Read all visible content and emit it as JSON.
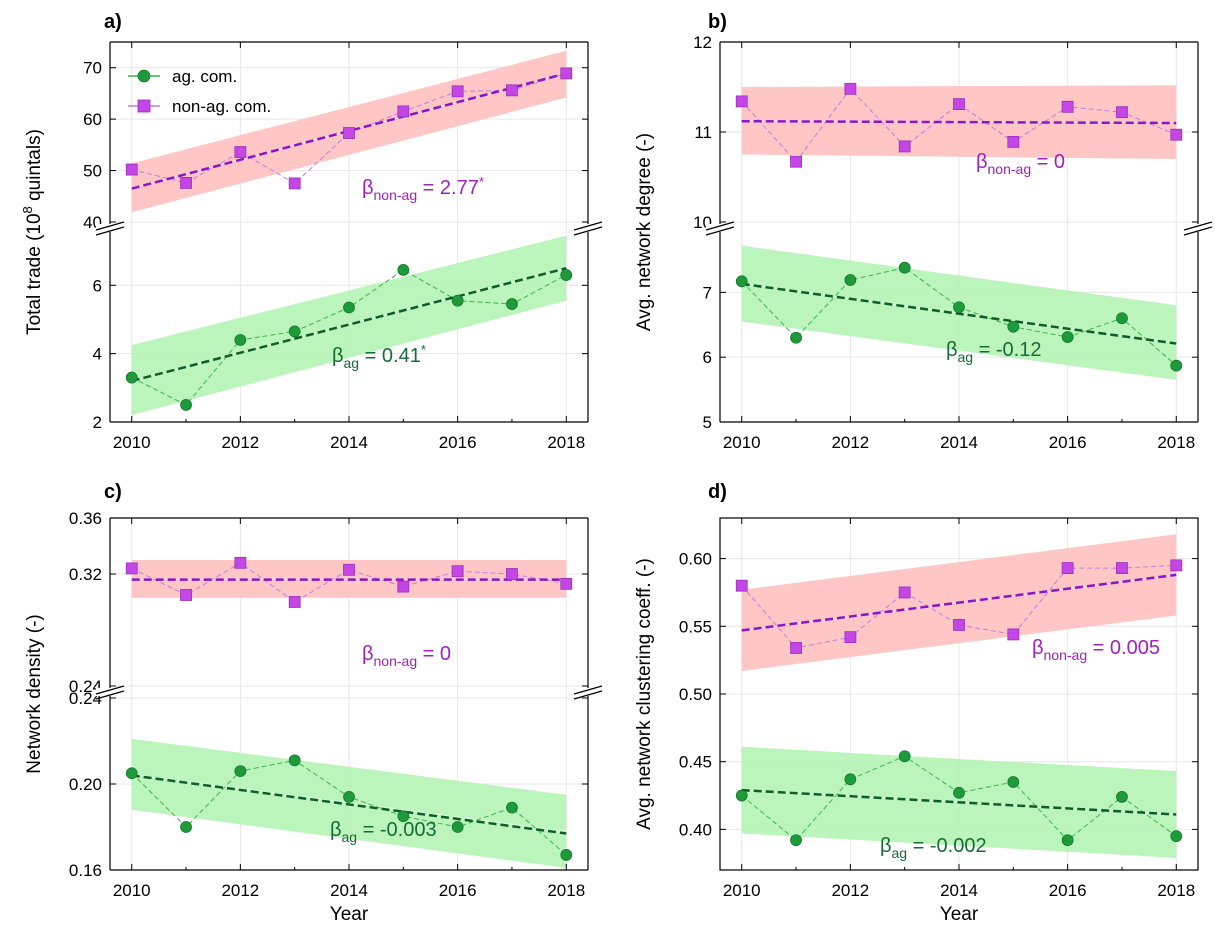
{
  "colors": {
    "ag_marker": "#1e9a3a",
    "ag_connect": "#3cb44b",
    "ag_fit": "#0d5e2a",
    "ag_band": "#b4f4b4",
    "ag_label": "#176b36",
    "nonag_marker": "#c546e6",
    "nonag_connect": "#c07ee0",
    "nonag_fit": "#8e14c8",
    "nonag_band": "#ffc0c0",
    "nonag_label": "#a020c0"
  },
  "legend": {
    "ag": "ag. com.",
    "nonag": "non-ag. com."
  },
  "chart_data": [
    {
      "type": "line",
      "panel": "a)",
      "xlabel": "",
      "ylabel": "Total trade (10^8 quintals)",
      "x": [
        2010,
        2011,
        2012,
        2013,
        2014,
        2015,
        2016,
        2017,
        2018
      ],
      "xticks": [
        "2010",
        "2012",
        "2014",
        "2016",
        "2018"
      ],
      "broken_axis": true,
      "grid": true,
      "legend_position": "top-left",
      "upper": {
        "ylim": [
          40,
          75
        ],
        "yticks": [
          "40",
          "50",
          "60",
          "70"
        ],
        "series": {
          "name": "non-ag. com.",
          "values": [
            50.2,
            47.6,
            53.6,
            47.5,
            57.3,
            61.5,
            65.4,
            65.6,
            68.9
          ],
          "fit": [
            46.5,
            68.9
          ],
          "band_low": [
            41.9,
            64.2
          ],
          "band_high": [
            51.4,
            73.3
          ],
          "beta_label": "β",
          "beta_sub": "non-ag",
          "beta_value": " = 2.77",
          "beta_star": "*"
        }
      },
      "lower": {
        "ylim": [
          2,
          7.5
        ],
        "yticks": [
          "2",
          "4",
          "6"
        ],
        "series": {
          "name": "ag. com.",
          "values": [
            3.3,
            2.5,
            4.4,
            4.65,
            5.35,
            6.45,
            5.55,
            5.45,
            6.3
          ],
          "fit": [
            3.2,
            6.5
          ],
          "band_low": [
            2.2,
            5.55
          ],
          "band_high": [
            4.25,
            7.45
          ],
          "beta_label": "β",
          "beta_sub": "ag",
          "beta_value": " = 0.41",
          "beta_star": "*"
        }
      }
    },
    {
      "type": "line",
      "panel": "b)",
      "xlabel": "",
      "ylabel": "Avg. network degree (-)",
      "x": [
        2010,
        2011,
        2012,
        2013,
        2014,
        2015,
        2016,
        2017,
        2018
      ],
      "xticks": [
        "2010",
        "2012",
        "2014",
        "2016",
        "2018"
      ],
      "broken_axis": true,
      "grid": true,
      "upper": {
        "ylim": [
          10,
          12
        ],
        "yticks": [
          "10",
          "11",
          "12"
        ],
        "series": {
          "name": "non-ag. com.",
          "values": [
            11.34,
            10.67,
            11.48,
            10.84,
            11.31,
            10.89,
            11.28,
            11.22,
            10.97
          ],
          "fit": [
            11.12,
            11.1
          ],
          "band_low": [
            10.75,
            10.7
          ],
          "band_high": [
            11.5,
            11.52
          ],
          "beta_label": "β",
          "beta_sub": "non-ag",
          "beta_value": " = 0",
          "beta_star": ""
        }
      },
      "lower": {
        "ylim": [
          5,
          7.9
        ],
        "yticks": [
          "5",
          "6",
          "7"
        ],
        "series": {
          "name": "ag. com.",
          "values": [
            7.17,
            6.3,
            7.19,
            7.38,
            6.77,
            6.47,
            6.31,
            6.6,
            5.87
          ],
          "fit": [
            7.13,
            6.21
          ],
          "band_low": [
            6.55,
            5.65
          ],
          "band_high": [
            7.72,
            6.8
          ],
          "beta_label": "β",
          "beta_sub": "ag",
          "beta_value": " = -0.12",
          "beta_star": ""
        }
      }
    },
    {
      "type": "line",
      "panel": "c)",
      "xlabel": "Year",
      "ylabel": "Network density (-)",
      "x": [
        2010,
        2011,
        2012,
        2013,
        2014,
        2015,
        2016,
        2017,
        2018
      ],
      "xticks": [
        "2010",
        "2012",
        "2014",
        "2016",
        "2018"
      ],
      "broken_axis": true,
      "grid": true,
      "upper": {
        "ylim": [
          0.24,
          0.36
        ],
        "yticks": [
          "0.24",
          "0.32",
          "0.36"
        ],
        "series": {
          "name": "non-ag. com.",
          "values": [
            0.324,
            0.305,
            0.328,
            0.3,
            0.323,
            0.311,
            0.322,
            0.32,
            0.313
          ],
          "fit": [
            0.316,
            0.316
          ],
          "band_low": [
            0.303,
            0.303
          ],
          "band_high": [
            0.33,
            0.33
          ],
          "beta_label": "β",
          "beta_sub": "non-ag",
          "beta_value": " = 0",
          "beta_star": ""
        }
      },
      "lower": {
        "ylim": [
          0.16,
          0.24
        ],
        "yticks": [
          "0.16",
          "0.20",
          "0.24"
        ],
        "series": {
          "name": "ag. com.",
          "values": [
            0.205,
            0.18,
            0.206,
            0.211,
            0.194,
            0.185,
            0.18,
            0.189,
            0.167
          ],
          "fit": [
            0.204,
            0.177
          ],
          "band_low": [
            0.188,
            0.161
          ],
          "band_high": [
            0.221,
            0.195
          ],
          "beta_label": "β",
          "beta_sub": "ag",
          "beta_value": " = -0.003",
          "beta_star": ""
        }
      }
    },
    {
      "type": "line",
      "panel": "d)",
      "xlabel": "Year",
      "ylabel": "Avg. network clustering coeff. (-)",
      "x": [
        2010,
        2011,
        2012,
        2013,
        2014,
        2015,
        2016,
        2017,
        2018
      ],
      "xticks": [
        "2010",
        "2012",
        "2014",
        "2016",
        "2018"
      ],
      "broken_axis": false,
      "grid": true,
      "ylim": [
        0.37,
        0.63
      ],
      "yticks": [
        "0.40",
        "0.45",
        "0.50",
        "0.55",
        "0.60"
      ],
      "series": [
        {
          "name": "non-ag. com.",
          "values": [
            0.58,
            0.534,
            0.542,
            0.575,
            0.551,
            0.544,
            0.593,
            0.593,
            0.595
          ],
          "fit": [
            0.547,
            0.588
          ],
          "band_low": [
            0.517,
            0.558
          ],
          "band_high": [
            0.577,
            0.618
          ],
          "beta_label": "β",
          "beta_sub": "non-ag",
          "beta_value": " = 0.005",
          "beta_star": ""
        },
        {
          "name": "ag. com.",
          "values": [
            0.425,
            0.392,
            0.437,
            0.454,
            0.427,
            0.435,
            0.392,
            0.424,
            0.395
          ],
          "fit": [
            0.429,
            0.411
          ],
          "band_low": [
            0.397,
            0.379
          ],
          "band_high": [
            0.461,
            0.443
          ],
          "beta_label": "β",
          "beta_sub": "ag",
          "beta_value": " = -0.002",
          "beta_star": ""
        }
      ]
    }
  ]
}
